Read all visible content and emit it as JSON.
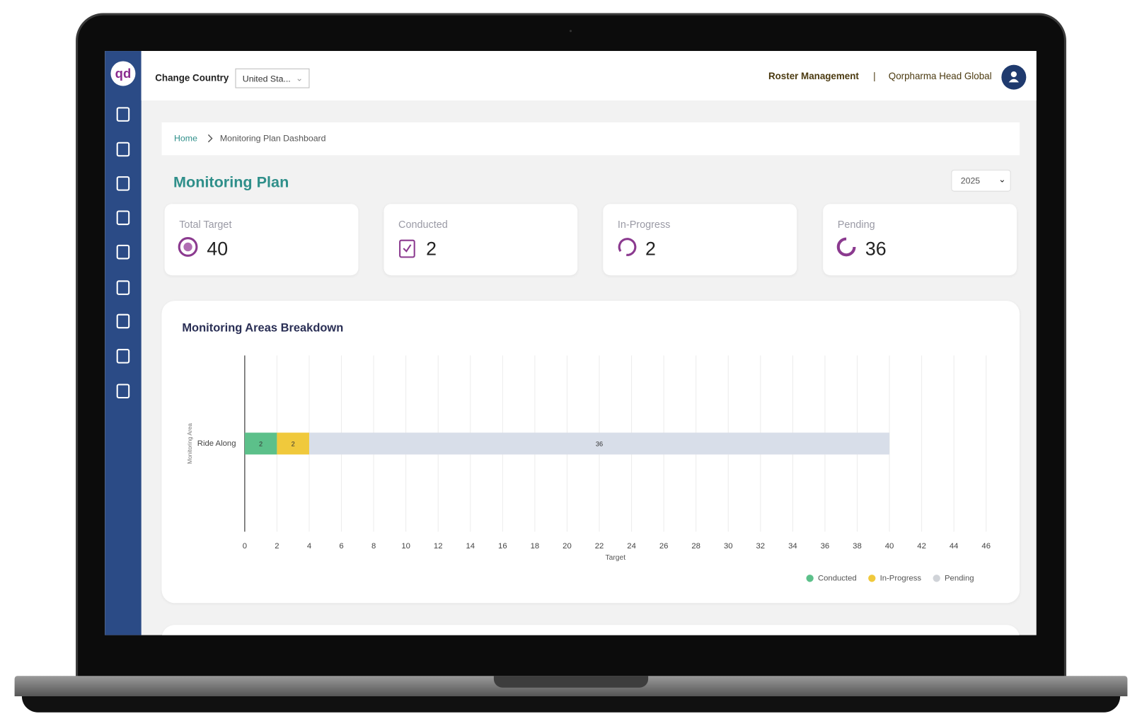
{
  "header": {
    "change_country_label": "Change Country",
    "country": "United Sta...",
    "roster": "Roster Management",
    "separator": "|",
    "org": "Qorpharma Head Global"
  },
  "breadcrumb": {
    "home": "Home",
    "current": "Monitoring Plan Dashboard"
  },
  "page_title": "Monitoring Plan",
  "year": "2025",
  "cards": [
    {
      "label": "Total Target",
      "value": 40
    },
    {
      "label": "Conducted",
      "value": 2
    },
    {
      "label": "In-Progress",
      "value": 2
    },
    {
      "label": "Pending",
      "value": 36
    }
  ],
  "chart_data": {
    "type": "stacked-bar-horizontal",
    "title": "Monitoring Areas Breakdown",
    "categories": [
      "Ride Along"
    ],
    "series": [
      {
        "name": "Conducted",
        "color": "#5cc08a",
        "values": [
          2
        ]
      },
      {
        "name": "In-Progress",
        "color": "#f0c93c",
        "values": [
          2
        ]
      },
      {
        "name": "Pending",
        "color": "#d8dee9",
        "values": [
          36
        ]
      }
    ],
    "x_label": "Target",
    "y_label": "Monitoring Area",
    "xlim": [
      0,
      46
    ],
    "xticks": [
      0,
      2,
      4,
      6,
      8,
      10,
      12,
      14,
      16,
      18,
      20,
      22,
      24,
      26,
      28,
      30,
      32,
      34,
      36,
      38,
      40,
      42,
      44,
      46
    ],
    "grid": true,
    "legend": "bottom-right"
  }
}
